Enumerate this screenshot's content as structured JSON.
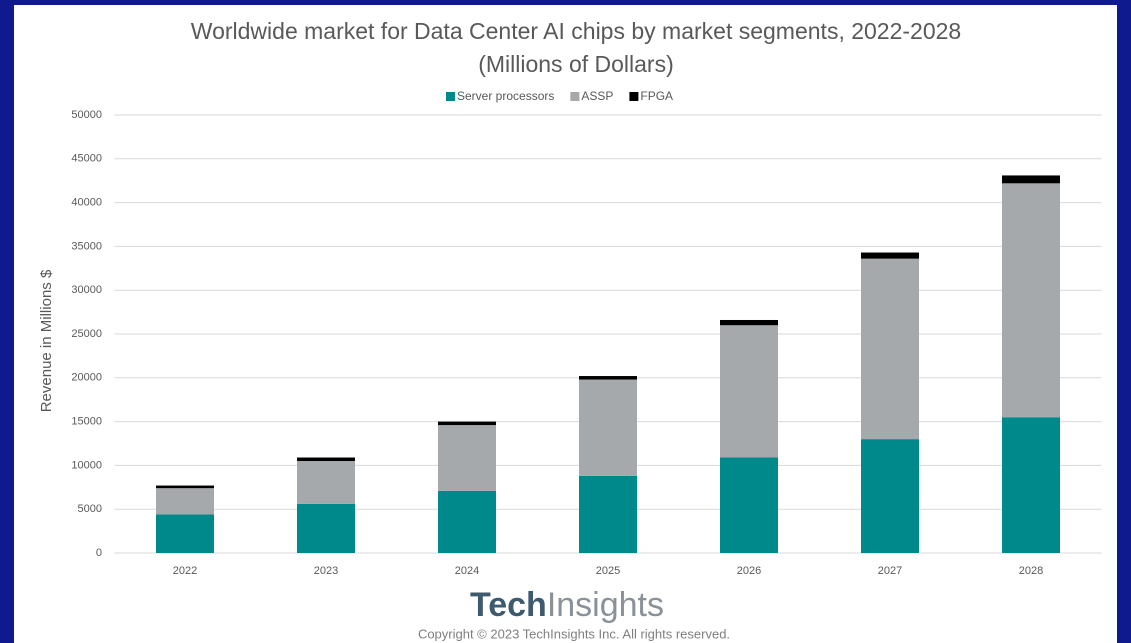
{
  "chart_data": {
    "type": "stacked_bar",
    "title": "Worldwide market for Data Center AI chips by market segments, 2022-2028",
    "subtitle": "(Millions of Dollars)",
    "y_label": "Revenue in Millions $",
    "categories": [
      "2022",
      "2023",
      "2024",
      "2025",
      "2026",
      "2027",
      "2028"
    ],
    "series": [
      {
        "name": "Server processors",
        "color": "#00898a",
        "values": [
          4400,
          5600,
          7100,
          8800,
          10900,
          13000,
          15500
        ]
      },
      {
        "name": "ASSP",
        "color": "#a6a9ac",
        "values": [
          3000,
          4900,
          7500,
          11000,
          15100,
          20600,
          26700
        ]
      },
      {
        "name": "FPGA",
        "color": "#000000",
        "values": [
          300,
          400,
          400,
          400,
          600,
          700,
          900
        ]
      }
    ],
    "ylim": [
      0,
      50000
    ],
    "yticks": [
      0,
      5000,
      10000,
      15000,
      20000,
      25000,
      30000,
      35000,
      40000,
      45000,
      50000
    ],
    "grid": true,
    "legend": "top",
    "logo": {
      "bold": "Tech",
      "light": "Insights"
    },
    "copyright": "Copyright © 2023 TechInsights Inc.  All rights reserved."
  }
}
